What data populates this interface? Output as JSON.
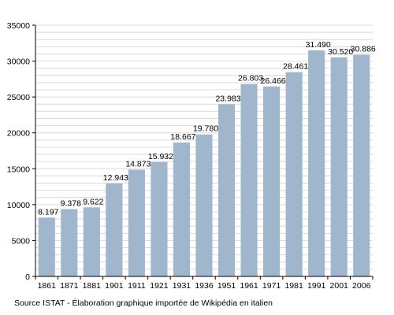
{
  "chart_data": {
    "type": "bar",
    "title": "",
    "xlabel": "",
    "ylabel": "",
    "categories": [
      "1861",
      "1871",
      "1881",
      "1901",
      "1911",
      "1921",
      "1931",
      "1936",
      "1951",
      "1961",
      "1971",
      "1981",
      "1991",
      "2001",
      "2006"
    ],
    "values": [
      8197,
      9378,
      9622,
      12943,
      14873,
      15932,
      18667,
      19780,
      23983,
      26803,
      26466,
      28461,
      31490,
      30520,
      30886
    ],
    "data_labels": [
      "8.197",
      "9.378",
      "9.622",
      "12.943",
      "14.873",
      "15.932",
      "18.667",
      "19.780",
      "23.983",
      "26.803",
      "26.466",
      "28.461",
      "31.490",
      "30.520",
      "30.886"
    ],
    "ylim": [
      0,
      35000
    ],
    "yticks": [
      0,
      5000,
      10000,
      15000,
      20000,
      25000,
      30000,
      35000
    ],
    "ytick_labels": [
      "0",
      "5000",
      "10000",
      "15000",
      "20000",
      "25000",
      "30000",
      "35000"
    ],
    "grid": true,
    "bar_color": "#9fb6cd",
    "grid_color": "#d9d9d9"
  },
  "source_note": "Source ISTAT - Élaboration graphique importée de Wikipédia en italien"
}
